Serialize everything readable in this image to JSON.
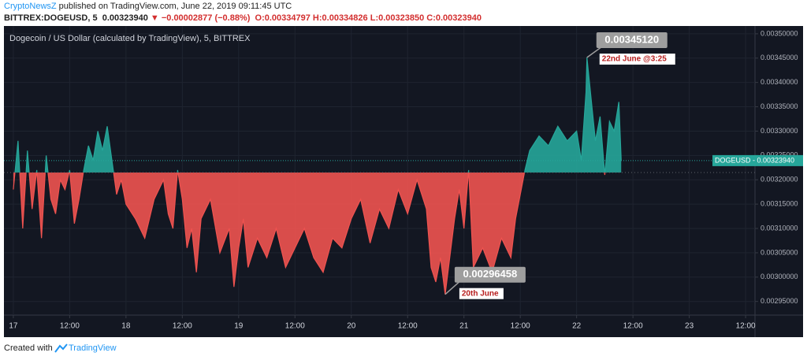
{
  "header": {
    "author": "CryptoNewsZ",
    "published": " published on TradingView.com, June 22, 2019 09:11:45 UTC",
    "symbol": "BITTREX:DOGEUSD, 5",
    "price": "0.00323940",
    "arrow": "▼",
    "change": "−0.00002877 (−0.88%)",
    "open": "O:0.00334797",
    "high": "H:0.00334826",
    "low": "L:0.00323850",
    "close": "C:0.00323940"
  },
  "chart_data": {
    "type": "baseline",
    "title": "Dogecoin / US Dollar (calculated by TradingView), 5, BITTREX",
    "x": [
      0,
      1,
      2,
      3,
      4,
      5,
      6,
      7,
      8,
      9,
      10,
      11,
      12,
      13,
      14,
      15,
      16,
      17,
      18,
      19,
      20,
      21,
      22,
      23,
      24,
      26,
      28,
      30,
      32,
      33,
      34,
      35,
      36,
      37,
      38,
      39,
      40,
      42,
      44,
      46,
      47,
      48,
      49,
      50,
      52,
      54,
      56,
      58,
      60,
      62,
      64,
      66,
      68,
      70,
      72,
      74,
      76,
      78,
      80,
      82,
      84,
      86,
      88,
      89,
      90,
      91,
      92,
      94,
      95,
      96,
      97,
      98,
      100,
      102,
      104,
      106,
      107,
      108,
      109,
      110,
      112,
      114,
      116,
      118,
      120,
      121,
      122,
      122.2,
      124,
      125,
      126,
      127,
      128,
      129,
      129.5
    ],
    "values": [
      0.00318,
      0.00328,
      0.0031,
      0.00326,
      0.00314,
      0.00322,
      0.00308,
      0.00325,
      0.00316,
      0.00313,
      0.0032,
      0.00318,
      0.00322,
      0.00311,
      0.00316,
      0.00322,
      0.00327,
      0.00324,
      0.0033,
      0.00326,
      0.00331,
      0.00324,
      0.00317,
      0.0032,
      0.00315,
      0.00312,
      0.00308,
      0.00316,
      0.0032,
      0.00313,
      0.0031,
      0.00322,
      0.00316,
      0.00306,
      0.0031,
      0.00301,
      0.00312,
      0.00316,
      0.00305,
      0.0031,
      0.00298,
      0.00306,
      0.00312,
      0.00302,
      0.00308,
      0.00304,
      0.0031,
      0.00302,
      0.00306,
      0.0031,
      0.00304,
      0.00301,
      0.00308,
      0.00306,
      0.00312,
      0.00316,
      0.00307,
      0.00314,
      0.0031,
      0.00318,
      0.00313,
      0.0032,
      0.00314,
      0.00302,
      0.00299,
      0.00304,
      0.00296458,
      0.00312,
      0.00318,
      0.0031,
      0.00322,
      0.00302,
      0.00306,
      0.00301,
      0.00308,
      0.00304,
      0.00312,
      0.00317,
      0.00322,
      0.00326,
      0.00329,
      0.00327,
      0.00331,
      0.00328,
      0.0033,
      0.00324,
      0.00338,
      0.0034512,
      0.00328,
      0.00333,
      0.00321,
      0.00332,
      0.0033,
      0.00336,
      0.0032394
    ],
    "baseline": 0.003215,
    "colors": {
      "above": "#26a69a",
      "below": "#ef5350"
    },
    "xlim": [
      -2,
      158
    ],
    "xticks": [
      {
        "value": 0,
        "label": "17"
      },
      {
        "value": 12,
        "label": "12:00"
      },
      {
        "value": 24,
        "label": "18"
      },
      {
        "value": 36,
        "label": "12:00"
      },
      {
        "value": 48,
        "label": "19"
      },
      {
        "value": 60,
        "label": "12:00"
      },
      {
        "value": 72,
        "label": "20"
      },
      {
        "value": 84,
        "label": "12:00"
      },
      {
        "value": 96,
        "label": "21"
      },
      {
        "value": 108,
        "label": "12:00"
      },
      {
        "value": 120,
        "label": "22"
      },
      {
        "value": 132,
        "label": "12:00"
      },
      {
        "value": 144,
        "label": "23"
      },
      {
        "value": 156,
        "label": "12:00"
      }
    ],
    "ylim": [
      0.002922,
      0.003516
    ],
    "yticks": [
      {
        "value": 0.00295,
        "label": "0.00295000"
      },
      {
        "value": 0.003,
        "label": "0.00300000"
      },
      {
        "value": 0.00305,
        "label": "0.00305000"
      },
      {
        "value": 0.0031,
        "label": "0.00310000"
      },
      {
        "value": 0.00315,
        "label": "0.00315000"
      },
      {
        "value": 0.0032,
        "label": "0.00320000"
      },
      {
        "value": 0.00325,
        "label": "0.00325000"
      },
      {
        "value": 0.0033,
        "label": "0.00330000"
      },
      {
        "value": 0.00335,
        "label": "0.00335000"
      },
      {
        "value": 0.0034,
        "label": "0.00340000"
      },
      {
        "value": 0.00345,
        "label": "0.00345000"
      },
      {
        "value": 0.0035,
        "label": "0.00350000"
      }
    ],
    "grid": true,
    "last_price": {
      "value": 0.0032394,
      "label": "DOGEUSD - 0.00323940"
    },
    "annotations": [
      {
        "x": 122.2,
        "value": 0.0034512,
        "label": "0.00345120",
        "note": "22nd June @3:25"
      },
      {
        "x": 92,
        "value": 0.00296458,
        "label": "0.00296458",
        "note": "20th June"
      }
    ]
  },
  "footer": {
    "created": "Created with",
    "brand": "TradingView"
  }
}
